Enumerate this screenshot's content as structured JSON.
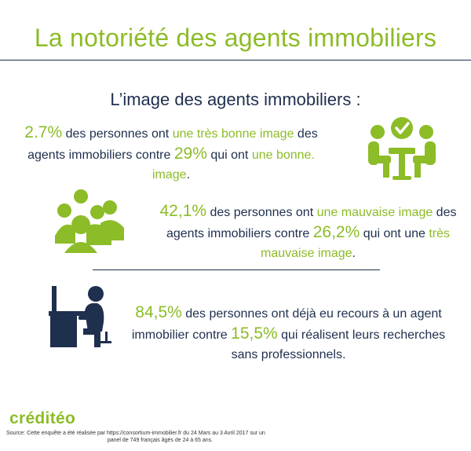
{
  "header": {
    "title": "La notoriété des agents immobiliers",
    "subtitle": "L’image des agents immobiliers :"
  },
  "stat1": {
    "pct": "2.7%",
    "t1": " des personnes ont ",
    "hl1": "une très bonne image",
    "t2": " des agents immobiliers contre ",
    "pct2": "29%",
    "t3": " qui ont ",
    "hl2": "une bonne. image",
    "t4": "."
  },
  "stat2": {
    "pct": "42,1%",
    "t1": " des personnes ont ",
    "hl1": "une mauvaise image",
    "t2": " des agents immobiliers contre ",
    "pct2": "26,2%",
    "t3": " qui ont une ",
    "hl2": "très mauvaise image",
    "t4": "."
  },
  "stat3": {
    "pct": "84,5%",
    "t1": " des personnes ont déjà eu recours à un agent immobilier contre ",
    "pct2": "15,5%",
    "t2": " qui réalisent leurs recherches sans professionnels."
  },
  "footer": {
    "brand": "créditéo",
    "source_line1": "Source: Cette enquête a été réalisée par https://consortium-immobilier.fr du 24 Mars au 3 Avril 2017 sur un",
    "source_line2": "panel de 749 français âgés de 24 à 65 ans."
  },
  "icons": {
    "meeting": "people-meeting-check-icon",
    "group": "group-people-icon",
    "desk": "person-at-computer-icon"
  },
  "colors": {
    "accent": "#8cbc27",
    "text": "#1f2f4e"
  }
}
